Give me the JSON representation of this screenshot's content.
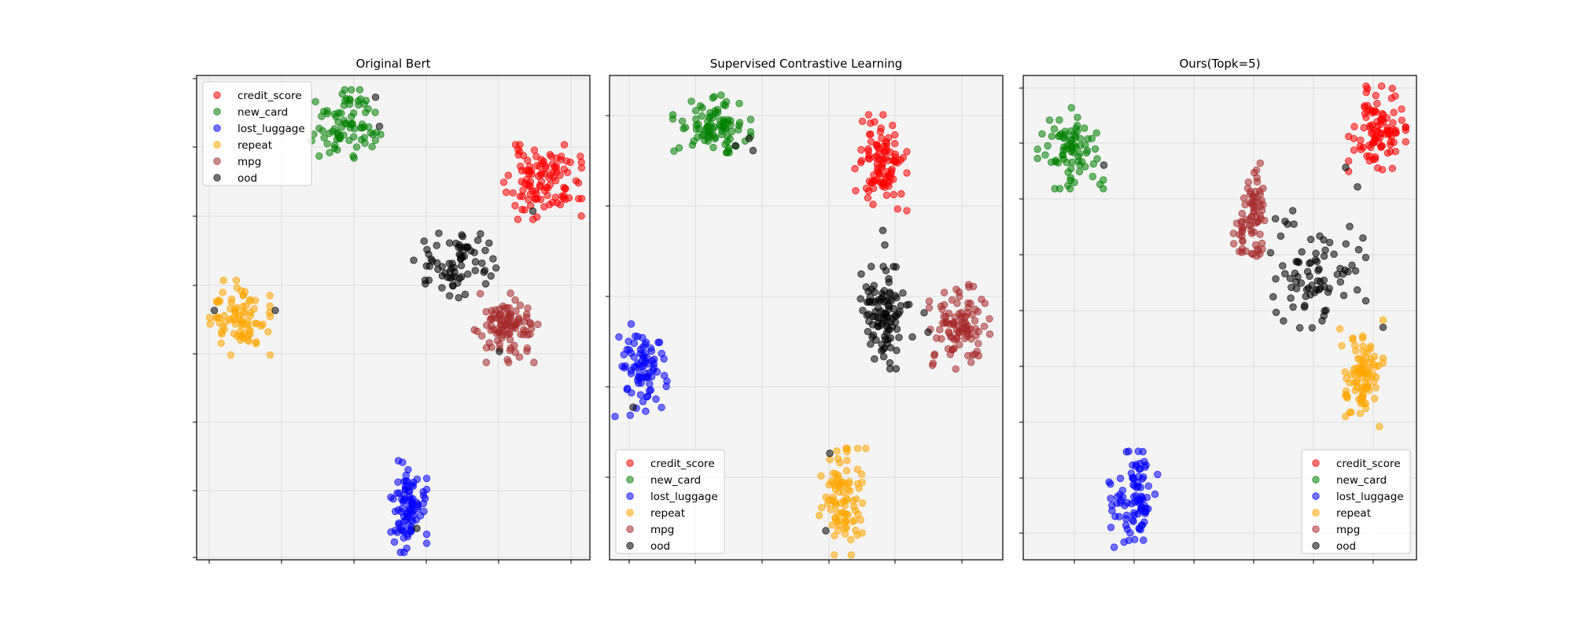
{
  "figure": {
    "series_styles": [
      {
        "name": "credit_score",
        "color": "#ff0000"
      },
      {
        "name": "new_card",
        "color": "#008000"
      },
      {
        "name": "lost_luggage",
        "color": "#0000ff"
      },
      {
        "name": "repeat",
        "color": "#ffa500"
      },
      {
        "name": "mpg",
        "color": "#a52a2a"
      },
      {
        "name": "ood",
        "color": "#000000"
      }
    ],
    "marker_alpha": 0.55
  },
  "chart_data": [
    {
      "type": "scatter",
      "title": "Original Bert",
      "xlabel": "",
      "ylabel": "",
      "grid": true,
      "tick_labels_shown": false,
      "legend_position": "top-left",
      "xlim": [
        0,
        100
      ],
      "ylim": [
        0,
        100
      ],
      "series": [
        {
          "name": "credit_score",
          "clusters": [
            {
              "center": [
                88,
                78
              ],
              "spread": [
                4.5,
                3.5
              ],
              "count": 110,
              "seed": 11
            }
          ]
        },
        {
          "name": "new_card",
          "clusters": [
            {
              "center": [
                38,
                90
              ],
              "spread": [
                4,
                3.2
              ],
              "count": 80,
              "seed": 12
            }
          ]
        },
        {
          "name": "lost_luggage",
          "clusters": [
            {
              "center": [
                53,
                11
              ],
              "spread": [
                2.5,
                4.3
              ],
              "count": 90,
              "seed": 13
            }
          ]
        },
        {
          "name": "repeat",
          "clusters": [
            {
              "center": [
                11,
                50
              ],
              "spread": [
                3.5,
                3.5
              ],
              "count": 80,
              "seed": 14
            }
          ],
          "points": [
            [
              18.5,
              51
            ]
          ]
        },
        {
          "name": "mpg",
          "clusters": [
            {
              "center": [
                79,
                48
              ],
              "spread": [
                3.8,
                3.3
              ],
              "count": 100,
              "seed": 15
            }
          ]
        },
        {
          "name": "ood",
          "clusters": [
            {
              "center": [
                66,
                61
              ],
              "spread": [
                5,
                3.5
              ],
              "count": 70,
              "seed": 16
            }
          ],
          "points": [
            [
              4.5,
              51.5
            ],
            [
              20,
              51.5
            ],
            [
              45.5,
              95.5
            ],
            [
              46.5,
              89.5
            ],
            [
              56,
              6.5
            ],
            [
              77,
              43
            ],
            [
              85.5,
              72
            ],
            [
              73.5,
              57
            ]
          ]
        }
      ]
    },
    {
      "type": "scatter",
      "title": "Supervised Contrastive Learning",
      "xlabel": "",
      "ylabel": "",
      "grid": true,
      "tick_labels_shown": false,
      "legend_position": "bottom-left",
      "xlim": [
        0,
        100
      ],
      "ylim": [
        0,
        100
      ],
      "series": [
        {
          "name": "credit_score",
          "clusters": [
            {
              "center": [
                69,
                82
              ],
              "spread": [
                3,
                4.5
              ],
              "count": 100,
              "seed": 21
            }
          ]
        },
        {
          "name": "new_card",
          "clusters": [
            {
              "center": [
                26,
                90
              ],
              "spread": [
                4.5,
                2.7
              ],
              "count": 90,
              "seed": 22
            }
          ]
        },
        {
          "name": "lost_luggage",
          "clusters": [
            {
              "center": [
                8,
                39.5
              ],
              "spread": [
                3,
                4.5
              ],
              "count": 80,
              "seed": 23
            }
          ]
        },
        {
          "name": "repeat",
          "clusters": [
            {
              "center": [
                59,
                12
              ],
              "spread": [
                2.8,
                5
              ],
              "count": 90,
              "seed": 24
            }
          ]
        },
        {
          "name": "mpg",
          "clusters": [
            {
              "center": [
                89,
                48
              ],
              "spread": [
                3.5,
                4
              ],
              "count": 100,
              "seed": 25
            }
          ]
        },
        {
          "name": "ood",
          "clusters": [
            {
              "center": [
                70,
                50
              ],
              "spread": [
                2.8,
                4.8
              ],
              "count": 100,
              "seed": 26
            }
          ],
          "points": [
            [
              69.5,
              68
            ],
            [
              70,
              65
            ],
            [
              64,
              59
            ],
            [
              77,
              46
            ],
            [
              80,
              51
            ],
            [
              81,
              47
            ],
            [
              35.5,
              87
            ],
            [
              36.5,
              84.5
            ],
            [
              32,
              85.5
            ],
            [
              6,
              31.5
            ],
            [
              56,
              22
            ],
            [
              55,
              6
            ]
          ]
        }
      ]
    },
    {
      "type": "scatter",
      "title": "Ours(Topk=5)",
      "xlabel": "",
      "ylabel": "",
      "grid": true,
      "tick_labels_shown": false,
      "legend_position": "bottom-right",
      "xlim": [
        0,
        100
      ],
      "ylim": [
        0,
        100
      ],
      "series": [
        {
          "name": "credit_score",
          "clusters": [
            {
              "center": [
                90,
                89
              ],
              "spread": [
                3.3,
                4
              ],
              "count": 100,
              "seed": 31
            }
          ]
        },
        {
          "name": "new_card",
          "clusters": [
            {
              "center": [
                12,
                85
              ],
              "spread": [
                3.8,
                3.8
              ],
              "count": 80,
              "seed": 32
            }
          ]
        },
        {
          "name": "lost_luggage",
          "clusters": [
            {
              "center": [
                28,
                12.5
              ],
              "spread": [
                2.8,
                4.5
              ],
              "count": 90,
              "seed": 33
            }
          ]
        },
        {
          "name": "repeat",
          "clusters": [
            {
              "center": [
                86,
                38.5
              ],
              "spread": [
                2.5,
                5
              ],
              "count": 90,
              "seed": 34
            }
          ]
        },
        {
          "name": "mpg",
          "clusters": [
            {
              "center": [
                59,
                72
              ],
              "spread": [
                1.3,
                4.5
              ],
              "count": 55,
              "seed": 35
            },
            {
              "center": [
                55.5,
                66
              ],
              "spread": [
                1,
                2.5
              ],
              "count": 20,
              "seed": 36
            }
          ]
        },
        {
          "name": "ood",
          "clusters": [
            {
              "center": [
                75,
                60
              ],
              "spread": [
                5.5,
                5.5
              ],
              "count": 80,
              "seed": 37
            }
          ],
          "points": [
            [
              20.5,
              81.5
            ],
            [
              82,
              81
            ],
            [
              85,
              77
            ],
            [
              91.5,
              48
            ],
            [
              77,
              51.5
            ]
          ]
        }
      ]
    }
  ]
}
